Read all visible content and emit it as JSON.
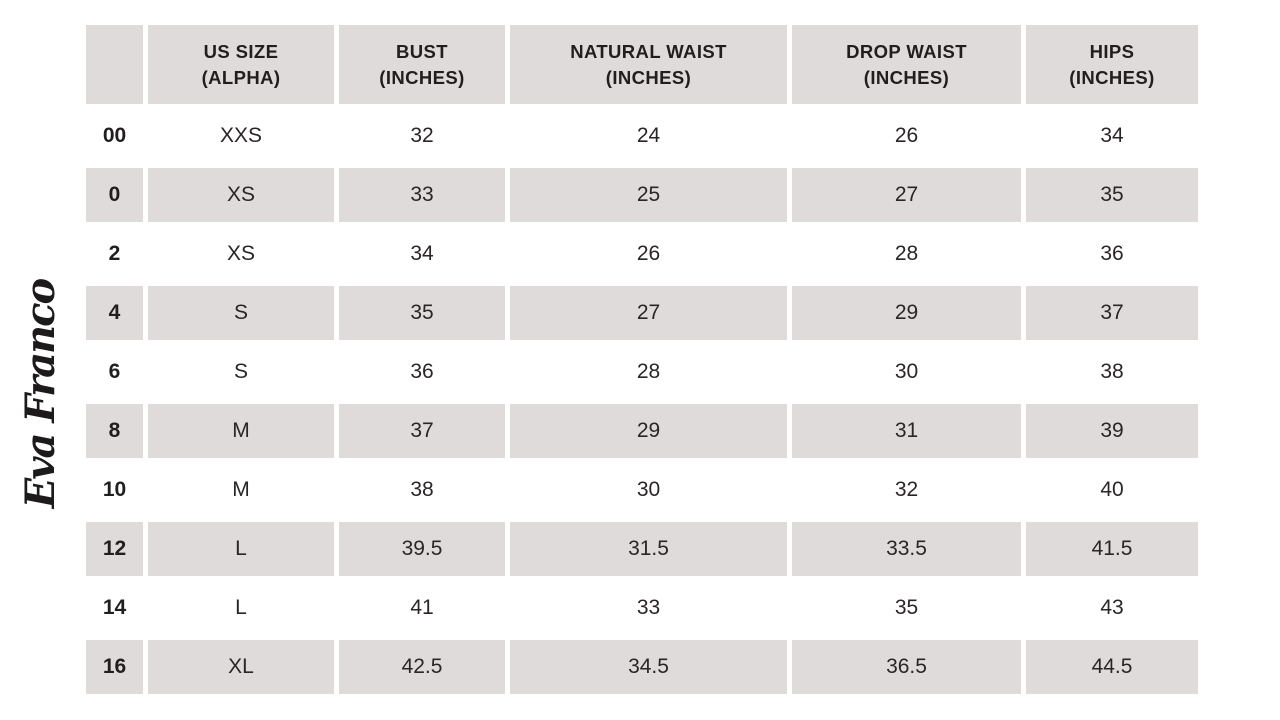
{
  "brand": {
    "logo_text": "Eva Franco"
  },
  "colors": {
    "stripe_gray": "#dfdbda",
    "text": "#231f20",
    "background": "#ffffff"
  },
  "table": {
    "headers": [
      "",
      "US SIZE\n(ALPHA)",
      "BUST\n(INCHES)",
      "NATURAL WAIST\n(INCHES)",
      "DROP WAIST\n(INCHES)",
      "HIPS\n(INCHES)"
    ],
    "rows": [
      {
        "us_size": "00",
        "alpha": "XXS",
        "bust": "32",
        "natural_waist": "24",
        "drop_waist": "26",
        "hips": "34"
      },
      {
        "us_size": "0",
        "alpha": "XS",
        "bust": "33",
        "natural_waist": "25",
        "drop_waist": "27",
        "hips": "35"
      },
      {
        "us_size": "2",
        "alpha": "XS",
        "bust": "34",
        "natural_waist": "26",
        "drop_waist": "28",
        "hips": "36"
      },
      {
        "us_size": "4",
        "alpha": "S",
        "bust": "35",
        "natural_waist": "27",
        "drop_waist": "29",
        "hips": "37"
      },
      {
        "us_size": "6",
        "alpha": "S",
        "bust": "36",
        "natural_waist": "28",
        "drop_waist": "30",
        "hips": "38"
      },
      {
        "us_size": "8",
        "alpha": "M",
        "bust": "37",
        "natural_waist": "29",
        "drop_waist": "31",
        "hips": "39"
      },
      {
        "us_size": "10",
        "alpha": "M",
        "bust": "38",
        "natural_waist": "30",
        "drop_waist": "32",
        "hips": "40"
      },
      {
        "us_size": "12",
        "alpha": "L",
        "bust": "39.5",
        "natural_waist": "31.5",
        "drop_waist": "33.5",
        "hips": "41.5"
      },
      {
        "us_size": "14",
        "alpha": "L",
        "bust": "41",
        "natural_waist": "33",
        "drop_waist": "35",
        "hips": "43"
      },
      {
        "us_size": "16",
        "alpha": "XL",
        "bust": "42.5",
        "natural_waist": "34.5",
        "drop_waist": "36.5",
        "hips": "44.5"
      }
    ]
  }
}
